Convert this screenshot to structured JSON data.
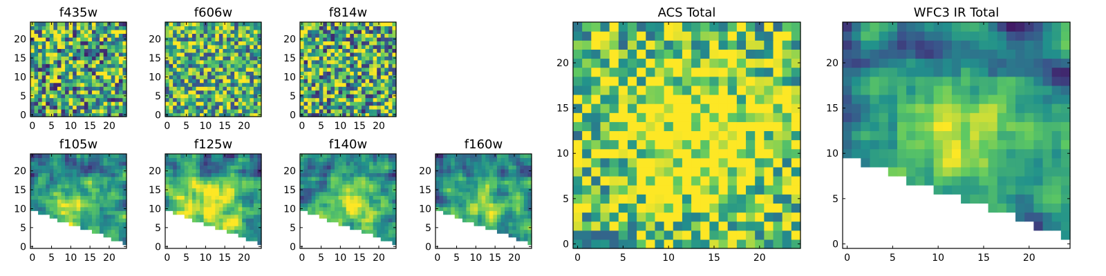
{
  "figure": {
    "colormap": "viridis",
    "colormap_stops": [
      "#440154",
      "#3b528b",
      "#21918c",
      "#5ec962",
      "#fde725"
    ]
  },
  "chart_data": [
    {
      "type": "heatmap",
      "title": "f435w",
      "grid": "none",
      "xlim": [
        -0.5,
        24.5
      ],
      "ylim": [
        -0.5,
        24.5
      ],
      "xticks": [
        0,
        5,
        10,
        15,
        20
      ],
      "yticks": [
        0,
        5,
        10,
        15,
        20
      ],
      "shape": [
        25,
        25
      ],
      "texture": "noise",
      "mean": 0.6,
      "spread": 0.5,
      "seed": 11,
      "blank_below": null
    },
    {
      "type": "heatmap",
      "title": "f606w",
      "grid": "none",
      "xlim": [
        -0.5,
        24.5
      ],
      "ylim": [
        -0.5,
        24.5
      ],
      "xticks": [
        0,
        5,
        10,
        15,
        20
      ],
      "yticks": [
        0,
        5,
        10,
        15,
        20
      ],
      "shape": [
        25,
        25
      ],
      "texture": "noise",
      "mean": 0.66,
      "spread": 0.45,
      "seed": 23,
      "blank_below": null
    },
    {
      "type": "heatmap",
      "title": "f814w",
      "grid": "none",
      "xlim": [
        -0.5,
        24.5
      ],
      "ylim": [
        -0.5,
        24.5
      ],
      "xticks": [
        0,
        5,
        10,
        15,
        20
      ],
      "yticks": [
        0,
        5,
        10,
        15,
        20
      ],
      "shape": [
        25,
        25
      ],
      "texture": "noise",
      "mean": 0.62,
      "spread": 0.5,
      "seed": 37,
      "blank_below": null
    },
    {
      "type": "heatmap",
      "title": "f105w",
      "grid": "none",
      "xlim": [
        -0.5,
        24.5
      ],
      "ylim": [
        -0.5,
        24.5
      ],
      "xticks": [
        0,
        5,
        10,
        15,
        20
      ],
      "yticks": [
        0,
        5,
        10,
        15,
        20
      ],
      "shape": [
        25,
        25
      ],
      "texture": "smooth",
      "mean": 0.5,
      "spread": 0.3,
      "seed": 41,
      "blob": [
        11,
        10,
        5
      ],
      "blank_below": [
        9.5,
        2.5
      ]
    },
    {
      "type": "heatmap",
      "title": "f125w",
      "grid": "none",
      "xlim": [
        -0.5,
        24.5
      ],
      "ylim": [
        -0.5,
        24.5
      ],
      "xticks": [
        0,
        5,
        10,
        15,
        20
      ],
      "yticks": [
        0,
        5,
        10,
        15,
        20
      ],
      "shape": [
        25,
        25
      ],
      "texture": "smooth",
      "mean": 0.62,
      "spread": 0.3,
      "seed": 53,
      "blob": [
        12,
        11,
        5
      ],
      "blank_below": [
        9.5,
        2.5
      ]
    },
    {
      "type": "heatmap",
      "title": "f140w",
      "grid": "none",
      "xlim": [
        -0.5,
        24.5
      ],
      "ylim": [
        -0.5,
        24.5
      ],
      "xticks": [
        0,
        5,
        10,
        15,
        20
      ],
      "yticks": [
        0,
        5,
        10,
        15,
        20
      ],
      "shape": [
        25,
        25
      ],
      "texture": "smooth",
      "mean": 0.55,
      "spread": 0.3,
      "seed": 67,
      "blob": [
        13,
        12,
        5
      ],
      "blank_below": [
        9.5,
        2.5
      ]
    },
    {
      "type": "heatmap",
      "title": "f160w",
      "grid": "none",
      "xlim": [
        -0.5,
        24.5
      ],
      "ylim": [
        -0.5,
        24.5
      ],
      "xticks": [
        0,
        5,
        10,
        15,
        20
      ],
      "yticks": [
        0,
        5,
        10,
        15,
        20
      ],
      "shape": [
        25,
        25
      ],
      "texture": "smooth",
      "mean": 0.5,
      "spread": 0.3,
      "seed": 79,
      "blob": [
        12,
        11,
        5
      ],
      "blank_below": [
        9.5,
        2.5
      ]
    },
    {
      "type": "heatmap",
      "title": "ACS Total",
      "grid": "none",
      "xlim": [
        -0.5,
        24.5
      ],
      "ylim": [
        -0.5,
        24.5
      ],
      "xticks": [
        0,
        5,
        10,
        15,
        20
      ],
      "yticks": [
        0,
        5,
        10,
        15,
        20
      ],
      "shape": [
        25,
        25
      ],
      "texture": "noise",
      "mean": 0.68,
      "spread": 0.4,
      "seed": 97,
      "blob": [
        13,
        12,
        7
      ],
      "blank_below": null
    },
    {
      "type": "heatmap",
      "title": "WFC3 IR Total",
      "grid": "none",
      "xlim": [
        -0.5,
        24.5
      ],
      "ylim": [
        -0.5,
        24.5
      ],
      "xticks": [
        0,
        5,
        10,
        15,
        20
      ],
      "yticks": [
        0,
        5,
        10,
        15,
        20
      ],
      "shape": [
        25,
        25
      ],
      "texture": "smooth",
      "mean": 0.5,
      "spread": 0.28,
      "seed": 113,
      "blob": [
        12,
        12,
        5
      ],
      "blank_below": [
        9.5,
        2.5
      ]
    }
  ]
}
